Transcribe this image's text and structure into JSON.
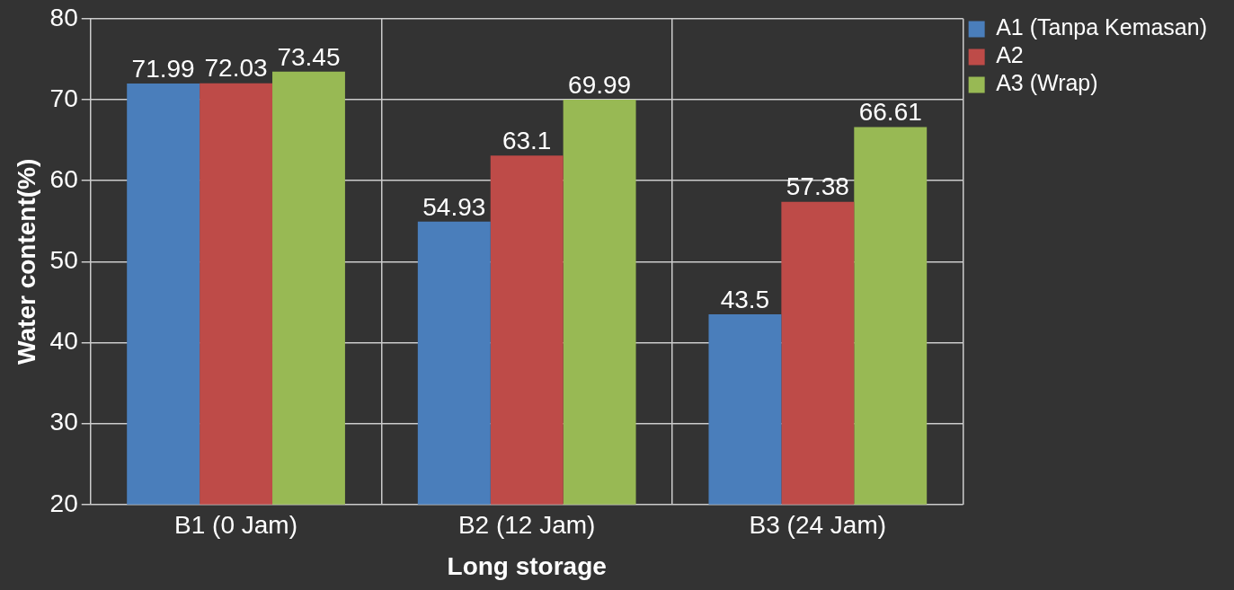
{
  "chart_data": {
    "type": "bar",
    "xlabel": "Long storage",
    "ylabel": "Water content(%)",
    "categories": [
      "B1 (0 Jam)",
      "B2 (12 Jam)",
      "B3 (24 Jam)"
    ],
    "series": [
      {
        "name": "A1 (Tanpa Kemasan)",
        "color": "#4a7ebb",
        "values": [
          71.99,
          54.93,
          43.5
        ]
      },
      {
        "name": "A2",
        "color": "#be4b48",
        "values": [
          72.03,
          63.1,
          57.38
        ]
      },
      {
        "name": "A3 (Wrap)",
        "color": "#98b954",
        "values": [
          73.45,
          69.99,
          66.61
        ]
      }
    ],
    "ylim": [
      20,
      80
    ],
    "yticks": [
      20,
      30,
      40,
      50,
      60,
      70,
      80
    ],
    "grid": true,
    "legend": "right",
    "data_labels": true
  }
}
